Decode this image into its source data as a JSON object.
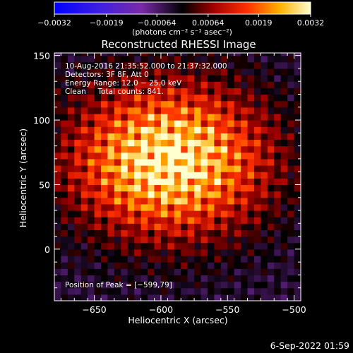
{
  "chart_data": {
    "type": "heatmap",
    "title": "Reconstructed RHESSI Image",
    "xlabel": "Heliocentric X (arcsec)",
    "ylabel": "Heliocentric Y (arcsec)",
    "xlim": [
      -680,
      -495
    ],
    "ylim": [
      -40,
      152
    ],
    "x_ticks": [
      -650,
      -600,
      -550,
      -500
    ],
    "y_ticks": [
      0,
      50,
      100,
      150
    ],
    "x_tick_labels": [
      "−650",
      "−600",
      "−550",
      "−500"
    ],
    "y_tick_labels": [
      "0",
      "50",
      "100",
      "150"
    ],
    "colorbar": {
      "range": [
        -0.0032,
        0.0032
      ],
      "tick_labels": [
        "−0.0032",
        "−0.0019",
        "−0.00064",
        "0.00064",
        "0.0019",
        "0.0032"
      ],
      "ticks": [
        -0.0032,
        -0.0019,
        -0.00064,
        0.00064,
        0.0019,
        0.0032
      ],
      "units_label": "(photons cm⁻² s⁻¹ asec⁻²)"
    },
    "annotations": {
      "time_range": "10-Aug-2016 21:35:52.000 to 21:37:32.000",
      "detectors": "Detectors: 3F 8F, Att 0",
      "energy": "Energy Range: 12.0 − 25.0 keV",
      "clean_counts": "Clean     Total counts: 841.",
      "peak": "Position of Peak = [−599,79]"
    },
    "peak": {
      "x": -599,
      "y": 79
    },
    "grid": false
  },
  "footer": {
    "timestamp": "6-Sep-2022 01:59"
  }
}
